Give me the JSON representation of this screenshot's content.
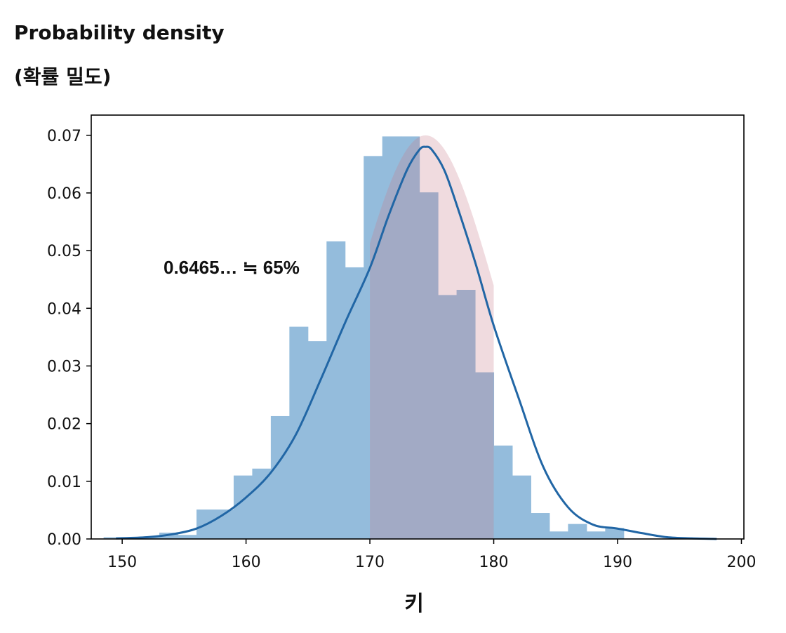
{
  "chart_data": {
    "type": "bar",
    "ylabel_line1": "Probability density",
    "ylabel_line2": "(확률 밀도)",
    "xlabel": "키",
    "annotation": "0.6465… ≒ 65%",
    "xlim": [
      147.5,
      200.2
    ],
    "ylim": [
      0,
      0.0735
    ],
    "xticks": [
      150,
      160,
      170,
      180,
      190,
      200
    ],
    "yticks": [
      0.0,
      0.01,
      0.02,
      0.03,
      0.04,
      0.05,
      0.06,
      0.07
    ],
    "highlight_range": [
      170,
      180
    ],
    "histogram": {
      "bin_edges": [
        148.5,
        150.0,
        151.5,
        153.0,
        154.5,
        156.0,
        157.5,
        159.0,
        160.5,
        162.0,
        163.5,
        165.0,
        166.5,
        168.0,
        169.5,
        171.0,
        172.5,
        174.0,
        175.5,
        177.0,
        178.5,
        180.0,
        181.5,
        183.0,
        184.5,
        186.0,
        187.5,
        189.0,
        190.5,
        192.0,
        193.5
      ],
      "values": [
        0.0003,
        0.0003,
        0.0003,
        0.0011,
        0.0007,
        0.0051,
        0.0051,
        0.011,
        0.0122,
        0.0213,
        0.0368,
        0.0343,
        0.0516,
        0.0471,
        0.0664,
        0.0698,
        0.0698,
        0.0601,
        0.0423,
        0.0432,
        0.0289,
        0.0162,
        0.011,
        0.0045,
        0.0013,
        0.0026,
        0.0013,
        0.0019,
        0.0,
        0.0
      ]
    },
    "kde": {
      "x": [
        149.5,
        152,
        154,
        156,
        158,
        160,
        162,
        164,
        166,
        168,
        170,
        171.5,
        173,
        174,
        174.5,
        175,
        176,
        177,
        178.5,
        180,
        182,
        184,
        186,
        188,
        190,
        192,
        194,
        196,
        198
      ],
      "y": [
        0.0001,
        0.0003,
        0.0008,
        0.0018,
        0.004,
        0.0072,
        0.0115,
        0.018,
        0.0275,
        0.0375,
        0.047,
        0.056,
        0.064,
        0.0675,
        0.068,
        0.0675,
        0.064,
        0.058,
        0.048,
        0.037,
        0.0245,
        0.0125,
        0.0055,
        0.0025,
        0.0018,
        0.001,
        0.0003,
        0.0001,
        0.0
      ]
    },
    "normal_fit": {
      "mean": 174.5,
      "sd": 5.7
    },
    "colors": {
      "bars": "#94bcdc",
      "highlight": "#c87f8c",
      "kde": "#2166a5",
      "axes": "#000000"
    }
  }
}
